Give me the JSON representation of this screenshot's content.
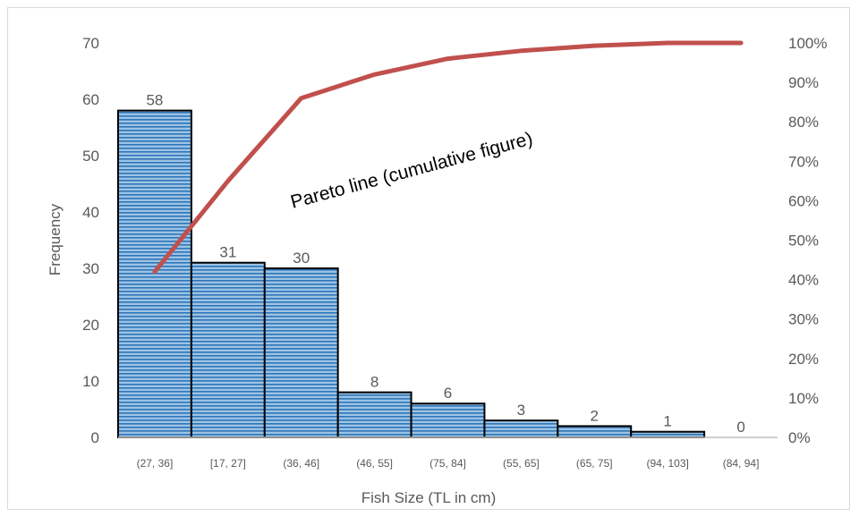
{
  "chart_data": {
    "type": "bar",
    "categories": [
      "(27, 36]",
      "[17, 27]",
      "(36, 46]",
      "(46, 55]",
      "(75, 84]",
      "(55, 65]",
      "(65, 75]",
      "(94, 103]",
      "(84, 94]"
    ],
    "values": [
      58,
      31,
      30,
      8,
      6,
      3,
      2,
      1,
      0
    ],
    "data_labels": [
      "58",
      "31",
      "30",
      "8",
      "6",
      "3",
      "2",
      "1",
      "0"
    ],
    "pareto_cumulative_percent": [
      42,
      65,
      86,
      92,
      96,
      98,
      99.3,
      100,
      100
    ],
    "xlabel": "Fish Size (TL in cm)",
    "ylabel": "Frequency",
    "ylim": [
      0,
      70
    ],
    "y_ticks": [
      "0",
      "10",
      "20",
      "30",
      "40",
      "50",
      "60",
      "70"
    ],
    "y2lim": [
      0,
      100
    ],
    "y2_ticks": [
      "0%",
      "10%",
      "20%",
      "30%",
      "40%",
      "50%",
      "60%",
      "70%",
      "80%",
      "90%",
      "100%"
    ],
    "annotation": "Pareto line (cumulative figure)",
    "grid": false,
    "colors": {
      "bar_fill": "#9dc3e6",
      "bar_stripe": "#2e75b6",
      "bar_outline": "#000000",
      "pareto_line": "#c0504d"
    }
  }
}
